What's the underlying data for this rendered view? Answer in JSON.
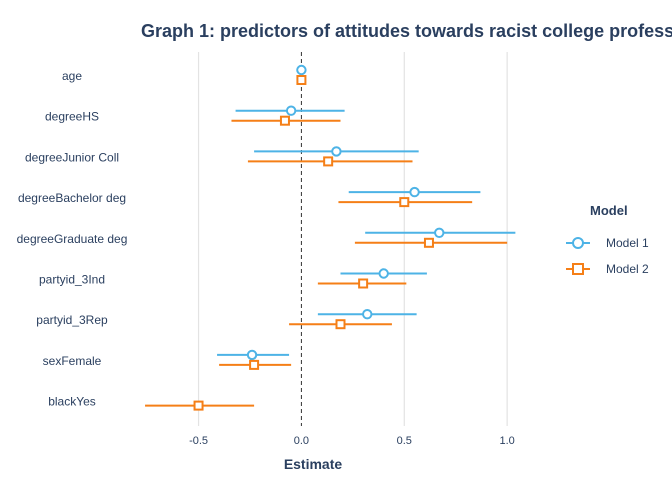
{
  "chart_data": {
    "type": "scatter",
    "title": "Graph 1: predictors of attitudes towards racist college profess",
    "xlabel": "Estimate",
    "ylabel": "",
    "xlim": [
      -0.77,
      1.15
    ],
    "x_ticks": [
      -0.5,
      0.0,
      0.5,
      1.0
    ],
    "x_tick_labels": [
      "-0.5",
      "0.0",
      "0.5",
      "1.0"
    ],
    "reference_line": 0,
    "grid": true,
    "legend_title": "Model",
    "legend_position": "right",
    "categories": [
      "age",
      "degreeHS",
      "degreeJunior Coll",
      "degreeBachelor deg",
      "degreeGraduate deg",
      "partyid_3Ind",
      "partyid_3Rep",
      "sexFemale",
      "blackYes"
    ],
    "series": [
      {
        "name": "Model 1",
        "color": "#4db3e6",
        "marker": "circle",
        "values": [
          0.0,
          -0.05,
          0.17,
          0.55,
          0.67,
          0.4,
          0.32,
          -0.24,
          null
        ],
        "lower": [
          -0.01,
          -0.32,
          -0.23,
          0.23,
          0.31,
          0.19,
          0.08,
          -0.41,
          null
        ],
        "upper": [
          0.01,
          0.21,
          0.57,
          0.87,
          1.04,
          0.61,
          0.56,
          -0.06,
          null
        ]
      },
      {
        "name": "Model 2",
        "color": "#f57f17",
        "marker": "square",
        "values": [
          0.0,
          -0.08,
          0.13,
          0.5,
          0.62,
          0.3,
          0.19,
          -0.23,
          -0.5
        ],
        "lower": [
          -0.01,
          -0.34,
          -0.26,
          0.18,
          0.26,
          0.08,
          -0.06,
          -0.4,
          -0.76
        ],
        "upper": [
          0.01,
          0.19,
          0.54,
          0.83,
          1.0,
          0.51,
          0.44,
          -0.05,
          -0.23
        ]
      }
    ]
  }
}
